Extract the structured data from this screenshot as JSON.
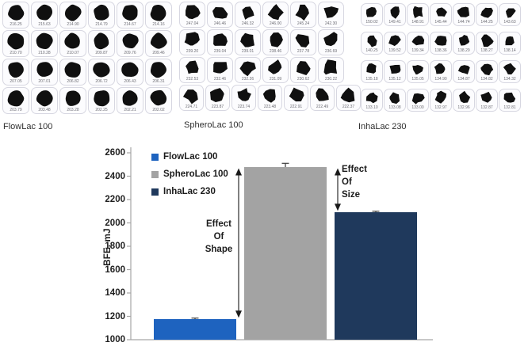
{
  "panels": [
    {
      "id": "flowlac",
      "label": "FlowLac 100",
      "shape": "round",
      "rows": [
        [
          "216.25",
          "215.63",
          "214.90",
          "214.79",
          "214.67",
          "214.16"
        ],
        [
          "210.70",
          "210.28",
          "210.07",
          "209.87",
          "209.76",
          "209.46"
        ],
        [
          "207.05",
          "207.01",
          "206.82",
          "206.72",
          "206.43",
          "206.31"
        ],
        [
          "203.79",
          "203.48",
          "203.28",
          "202.25",
          "202.21",
          "202.02"
        ]
      ]
    },
    {
      "id": "spherolac",
      "label": "SpheroLac 100",
      "shape": "angular",
      "rows": [
        [
          "247.04",
          "246.46",
          "246.32",
          "246.00",
          "245.24",
          "242.30"
        ],
        [
          "239.20",
          "239.04",
          "239.01",
          "238.46",
          "237.78",
          "236.69"
        ],
        [
          "232.53",
          "232.46",
          "232.26",
          "231.09",
          "230.62",
          "230.22"
        ],
        [
          "224.71",
          "223.87",
          "223.74",
          "223.48",
          "222.91",
          "222.49",
          "222.37"
        ]
      ]
    },
    {
      "id": "inhalac",
      "label": "InhaLac 230",
      "shape": "angular",
      "rows": [
        [
          "150.02",
          "149.41",
          "148.91",
          "145.44",
          "144.74",
          "144.25",
          "143.63"
        ],
        [
          "140.25",
          "139.52",
          "139.34",
          "138.36",
          "138.29",
          "138.27",
          "138.14"
        ],
        [
          "135.18",
          "135.12",
          "135.05",
          "134.90",
          "134.87",
          "134.82",
          "134.32"
        ],
        [
          "133.10",
          "133.08",
          "133.00",
          "132.97",
          "132.96",
          "132.87",
          "132.81"
        ]
      ]
    }
  ],
  "chart_data": {
    "type": "bar",
    "categories": [
      "FlowLac 100",
      "SpheroLac 100",
      "InhaLac 230"
    ],
    "values": [
      1175,
      2475,
      2090
    ],
    "errors": [
      10,
      35,
      10
    ],
    "colors": [
      "#1e63bf",
      "#a3a3a3",
      "#1f395c"
    ],
    "title": "",
    "xlabel": "",
    "ylabel": "BFE, mJ",
    "ylim": [
      1000,
      2600
    ],
    "yticks": [
      1000,
      1200,
      1400,
      1600,
      1800,
      2000,
      2200,
      2400,
      2600
    ],
    "grid": false,
    "legend": {
      "position": "top-left",
      "entries": [
        "FlowLac 100",
        "SpheroLac 100",
        "InhaLac 230"
      ]
    },
    "annotations": [
      {
        "lines": [
          "Effect",
          "Of",
          "Shape"
        ],
        "from": "SpheroLac 100",
        "to": "FlowLac 100"
      },
      {
        "lines": [
          "Effect",
          "Of",
          "Size"
        ],
        "from": "SpheroLac 100",
        "to": "InhaLac 230"
      }
    ]
  }
}
